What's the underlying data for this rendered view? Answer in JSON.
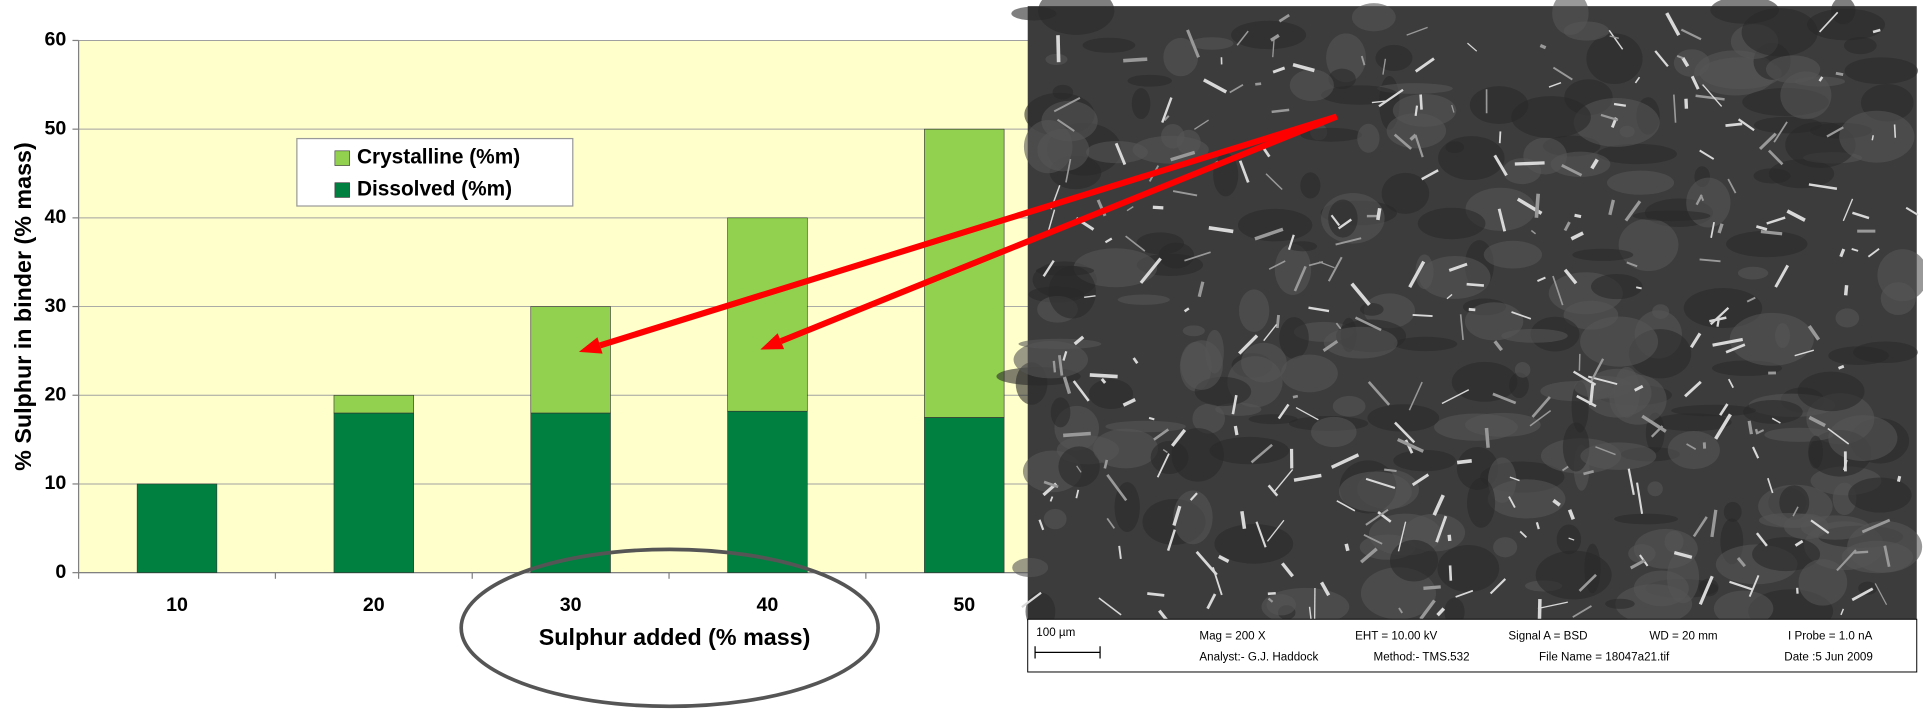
{
  "chart_data": {
    "type": "stacked-bar",
    "x_label": "Sulphur added (% mass)",
    "y_label": "% Sulphur in binder (% mass)",
    "categories": [
      "10",
      "20",
      "30",
      "40",
      "50"
    ],
    "series": [
      {
        "name": "Dissolved (%m)",
        "color": "#008040",
        "values": [
          10,
          18,
          18,
          18.2,
          17.5
        ]
      },
      {
        "name": "Crystalline (%m)",
        "color": "#92d050",
        "values": [
          0,
          2,
          12,
          21.8,
          32.5
        ]
      }
    ],
    "ylim": [
      0,
      60
    ],
    "yticks": [
      0,
      10,
      20,
      30,
      40,
      50,
      60
    ],
    "grid": true
  },
  "sem_image": {
    "scale_bar": "100 µm",
    "info": [
      "Mag =  200 X",
      "EHT = 10.00 kV",
      "Signal A = BSD",
      "WD =  20 mm",
      "I Probe =  1.0 nA",
      "Analyst:- G.J. Haddock",
      "Method:- TMS.532",
      "File Name = 18047a21.tif",
      "Date :5 Jun 2009"
    ]
  }
}
